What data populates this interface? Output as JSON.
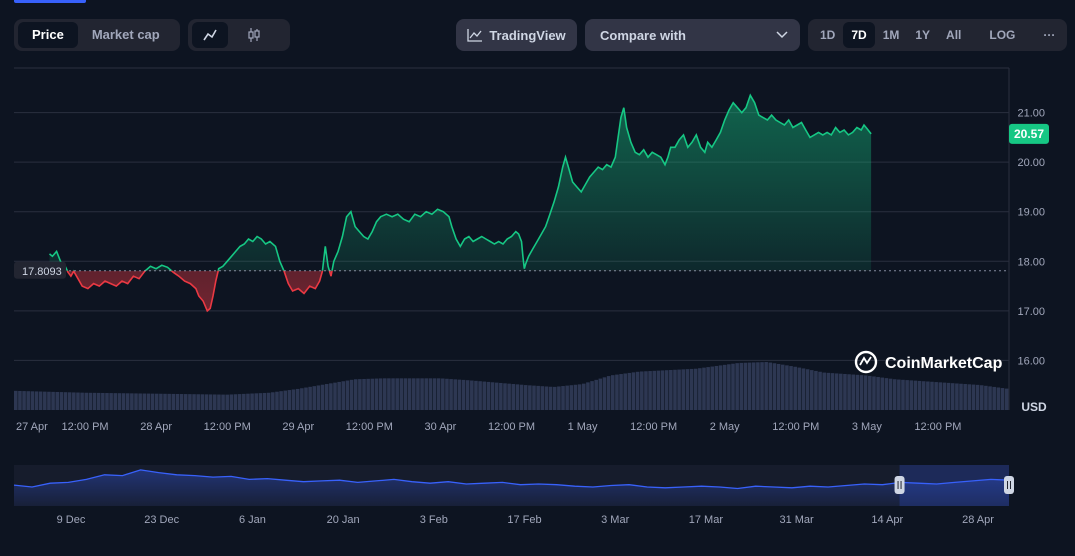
{
  "toolbar": {
    "price_label": "Price",
    "market_cap_label": "Market cap",
    "tradingview_label": "TradingView",
    "compare_label": "Compare with",
    "range_options": [
      "1D",
      "7D",
      "1M",
      "1Y",
      "All"
    ],
    "range_selected": "7D",
    "log_label": "LOG",
    "more_label": "···"
  },
  "chart_data": {
    "type": "area",
    "title": "",
    "baseline_value": 17.8093,
    "baseline_label": "17.8093",
    "current_value": 20.57,
    "current_label": "20.57",
    "ylim": [
      15.0,
      21.9
    ],
    "yticks": [
      16.0,
      17.0,
      18.0,
      19.0,
      20.0,
      21.0
    ],
    "ytick_labels": [
      "16.00",
      "17.00",
      "18.00",
      "19.00",
      "20.00",
      "21.00"
    ],
    "ylabel": "USD",
    "x_domain": [
      0,
      7
    ],
    "x_ticks": [
      {
        "t": 0.0,
        "label": "27 Apr"
      },
      {
        "t": 0.5,
        "label": "12:00 PM"
      },
      {
        "t": 1.0,
        "label": "28 Apr"
      },
      {
        "t": 1.5,
        "label": "12:00 PM"
      },
      {
        "t": 2.0,
        "label": "29 Apr"
      },
      {
        "t": 2.5,
        "label": "12:00 PM"
      },
      {
        "t": 3.0,
        "label": "30 Apr"
      },
      {
        "t": 3.5,
        "label": "12:00 PM"
      },
      {
        "t": 4.0,
        "label": "1 May"
      },
      {
        "t": 4.5,
        "label": "12:00 PM"
      },
      {
        "t": 5.0,
        "label": "2 May"
      },
      {
        "t": 5.5,
        "label": "12:00 PM"
      },
      {
        "t": 6.0,
        "label": "3 May"
      },
      {
        "t": 6.5,
        "label": "12:00 PM"
      }
    ],
    "price_series": [
      [
        0.25,
        18.15
      ],
      [
        0.27,
        18.1
      ],
      [
        0.3,
        18.2
      ],
      [
        0.33,
        17.98
      ],
      [
        0.36,
        17.9
      ],
      [
        0.38,
        17.78
      ],
      [
        0.4,
        17.7
      ],
      [
        0.42,
        17.8
      ],
      [
        0.45,
        17.65
      ],
      [
        0.48,
        17.5
      ],
      [
        0.52,
        17.45
      ],
      [
        0.56,
        17.55
      ],
      [
        0.6,
        17.5
      ],
      [
        0.64,
        17.6
      ],
      [
        0.68,
        17.55
      ],
      [
        0.72,
        17.5
      ],
      [
        0.76,
        17.6
      ],
      [
        0.8,
        17.55
      ],
      [
        0.84,
        17.7
      ],
      [
        0.88,
        17.65
      ],
      [
        0.92,
        17.8
      ],
      [
        0.96,
        17.9
      ],
      [
        1.0,
        17.85
      ],
      [
        1.04,
        17.92
      ],
      [
        1.08,
        17.88
      ],
      [
        1.12,
        17.78
      ],
      [
        1.16,
        17.7
      ],
      [
        1.2,
        17.6
      ],
      [
        1.24,
        17.55
      ],
      [
        1.28,
        17.45
      ],
      [
        1.3,
        17.3
      ],
      [
        1.33,
        17.2
      ],
      [
        1.36,
        17.0
      ],
      [
        1.38,
        17.05
      ],
      [
        1.4,
        17.3
      ],
      [
        1.42,
        17.6
      ],
      [
        1.44,
        17.85
      ],
      [
        1.47,
        17.9
      ],
      [
        1.5,
        18.0
      ],
      [
        1.53,
        18.1
      ],
      [
        1.56,
        18.2
      ],
      [
        1.59,
        18.3
      ],
      [
        1.62,
        18.35
      ],
      [
        1.65,
        18.45
      ],
      [
        1.68,
        18.4
      ],
      [
        1.71,
        18.5
      ],
      [
        1.74,
        18.45
      ],
      [
        1.77,
        18.35
      ],
      [
        1.8,
        18.4
      ],
      [
        1.84,
        18.3
      ],
      [
        1.87,
        18.0
      ],
      [
        1.9,
        17.8
      ],
      [
        1.93,
        17.55
      ],
      [
        1.96,
        17.4
      ],
      [
        2.0,
        17.45
      ],
      [
        2.04,
        17.35
      ],
      [
        2.08,
        17.5
      ],
      [
        2.12,
        17.45
      ],
      [
        2.15,
        17.6
      ],
      [
        2.17,
        17.8
      ],
      [
        2.19,
        18.3
      ],
      [
        2.21,
        17.9
      ],
      [
        2.23,
        17.7
      ],
      [
        2.25,
        18.0
      ],
      [
        2.28,
        18.2
      ],
      [
        2.31,
        18.5
      ],
      [
        2.34,
        18.9
      ],
      [
        2.37,
        19.0
      ],
      [
        2.4,
        18.7
      ],
      [
        2.43,
        18.6
      ],
      [
        2.46,
        18.5
      ],
      [
        2.49,
        18.45
      ],
      [
        2.52,
        18.6
      ],
      [
        2.55,
        18.8
      ],
      [
        2.58,
        18.9
      ],
      [
        2.62,
        18.95
      ],
      [
        2.66,
        18.9
      ],
      [
        2.7,
        18.95
      ],
      [
        2.74,
        18.85
      ],
      [
        2.78,
        18.8
      ],
      [
        2.82,
        18.95
      ],
      [
        2.86,
        18.9
      ],
      [
        2.9,
        19.0
      ],
      [
        2.94,
        18.95
      ],
      [
        2.98,
        19.05
      ],
      [
        3.02,
        19.0
      ],
      [
        3.06,
        18.9
      ],
      [
        3.08,
        18.7
      ],
      [
        3.11,
        18.45
      ],
      [
        3.14,
        18.3
      ],
      [
        3.17,
        18.45
      ],
      [
        3.2,
        18.5
      ],
      [
        3.23,
        18.4
      ],
      [
        3.26,
        18.45
      ],
      [
        3.29,
        18.5
      ],
      [
        3.32,
        18.45
      ],
      [
        3.35,
        18.4
      ],
      [
        3.38,
        18.35
      ],
      [
        3.41,
        18.4
      ],
      [
        3.44,
        18.35
      ],
      [
        3.47,
        18.45
      ],
      [
        3.5,
        18.5
      ],
      [
        3.53,
        18.6
      ],
      [
        3.55,
        18.55
      ],
      [
        3.57,
        18.4
      ],
      [
        3.58,
        18.1
      ],
      [
        3.59,
        17.85
      ],
      [
        3.6,
        17.95
      ],
      [
        3.62,
        18.1
      ],
      [
        3.65,
        18.25
      ],
      [
        3.68,
        18.4
      ],
      [
        3.71,
        18.55
      ],
      [
        3.74,
        18.7
      ],
      [
        3.77,
        18.95
      ],
      [
        3.8,
        19.2
      ],
      [
        3.83,
        19.5
      ],
      [
        3.86,
        19.9
      ],
      [
        3.88,
        20.1
      ],
      [
        3.9,
        19.9
      ],
      [
        3.93,
        19.6
      ],
      [
        3.96,
        19.5
      ],
      [
        3.99,
        19.4
      ],
      [
        4.02,
        19.55
      ],
      [
        4.05,
        19.7
      ],
      [
        4.08,
        19.8
      ],
      [
        4.11,
        19.9
      ],
      [
        4.14,
        19.85
      ],
      [
        4.17,
        19.95
      ],
      [
        4.2,
        19.9
      ],
      [
        4.23,
        20.1
      ],
      [
        4.25,
        20.5
      ],
      [
        4.27,
        20.9
      ],
      [
        4.29,
        21.1
      ],
      [
        4.31,
        20.7
      ],
      [
        4.34,
        20.4
      ],
      [
        4.37,
        20.2
      ],
      [
        4.4,
        20.15
      ],
      [
        4.43,
        20.25
      ],
      [
        4.46,
        20.1
      ],
      [
        4.49,
        20.2
      ],
      [
        4.52,
        20.15
      ],
      [
        4.55,
        20.1
      ],
      [
        4.58,
        19.95
      ],
      [
        4.6,
        20.1
      ],
      [
        4.62,
        20.3
      ],
      [
        4.65,
        20.3
      ],
      [
        4.68,
        20.45
      ],
      [
        4.71,
        20.55
      ],
      [
        4.74,
        20.3
      ],
      [
        4.77,
        20.4
      ],
      [
        4.8,
        20.55
      ],
      [
        4.83,
        20.3
      ],
      [
        4.86,
        20.2
      ],
      [
        4.88,
        20.4
      ],
      [
        4.91,
        20.3
      ],
      [
        4.94,
        20.45
      ],
      [
        4.97,
        20.6
      ],
      [
        5.0,
        20.85
      ],
      [
        5.03,
        21.05
      ],
      [
        5.06,
        21.2
      ],
      [
        5.09,
        21.1
      ],
      [
        5.12,
        21.0
      ],
      [
        5.15,
        21.1
      ],
      [
        5.18,
        21.35
      ],
      [
        5.21,
        21.2
      ],
      [
        5.24,
        20.95
      ],
      [
        5.27,
        20.9
      ],
      [
        5.3,
        20.85
      ],
      [
        5.33,
        20.95
      ],
      [
        5.36,
        20.85
      ],
      [
        5.39,
        20.8
      ],
      [
        5.42,
        20.75
      ],
      [
        5.45,
        20.85
      ],
      [
        5.48,
        20.7
      ],
      [
        5.51,
        20.75
      ],
      [
        5.54,
        20.8
      ],
      [
        5.57,
        20.65
      ],
      [
        5.6,
        20.5
      ],
      [
        5.63,
        20.55
      ],
      [
        5.66,
        20.6
      ],
      [
        5.69,
        20.55
      ],
      [
        5.72,
        20.6
      ],
      [
        5.75,
        20.55
      ],
      [
        5.78,
        20.7
      ],
      [
        5.81,
        20.6
      ],
      [
        5.84,
        20.65
      ],
      [
        5.87,
        20.55
      ],
      [
        5.9,
        20.6
      ],
      [
        5.93,
        20.7
      ],
      [
        5.96,
        20.65
      ],
      [
        5.98,
        20.75
      ],
      [
        6.0,
        20.68
      ],
      [
        6.03,
        20.57
      ]
    ],
    "volume_series": [
      [
        0.0,
        0.4
      ],
      [
        0.5,
        0.36
      ],
      [
        1.0,
        0.34
      ],
      [
        1.5,
        0.32
      ],
      [
        1.8,
        0.36
      ],
      [
        2.0,
        0.44
      ],
      [
        2.2,
        0.54
      ],
      [
        2.4,
        0.64
      ],
      [
        2.6,
        0.66
      ],
      [
        3.0,
        0.66
      ],
      [
        3.2,
        0.62
      ],
      [
        3.6,
        0.52
      ],
      [
        3.8,
        0.48
      ],
      [
        4.0,
        0.54
      ],
      [
        4.2,
        0.72
      ],
      [
        4.4,
        0.8
      ],
      [
        4.8,
        0.86
      ],
      [
        5.1,
        0.98
      ],
      [
        5.3,
        1.0
      ],
      [
        5.5,
        0.9
      ],
      [
        5.7,
        0.78
      ],
      [
        6.0,
        0.72
      ],
      [
        6.2,
        0.64
      ],
      [
        6.5,
        0.58
      ],
      [
        6.8,
        0.52
      ],
      [
        7.0,
        0.44
      ]
    ],
    "overview": {
      "x_labels": [
        "9 Dec",
        "23 Dec",
        "6 Jan",
        "20 Jan",
        "3 Feb",
        "17 Feb",
        "3 Mar",
        "17 Mar",
        "31 Mar",
        "14 Apr",
        "28 Apr"
      ],
      "series": [
        0.55,
        0.5,
        0.6,
        0.62,
        0.7,
        0.82,
        0.8,
        0.95,
        0.88,
        0.82,
        0.8,
        0.76,
        0.78,
        0.7,
        0.72,
        0.68,
        0.64,
        0.66,
        0.68,
        0.62,
        0.66,
        0.7,
        0.64,
        0.6,
        0.64,
        0.58,
        0.6,
        0.62,
        0.56,
        0.58,
        0.56,
        0.52,
        0.5,
        0.54,
        0.56,
        0.5,
        0.48,
        0.5,
        0.52,
        0.5,
        0.46,
        0.52,
        0.5,
        0.48,
        0.52,
        0.5,
        0.54,
        0.58,
        0.56,
        0.62,
        0.6,
        0.58,
        0.62,
        0.66,
        0.7,
        0.68
      ],
      "brush_start": 0.89
    },
    "watermark": "CoinMarketCap"
  },
  "colors": {
    "up": "#16c784",
    "down": "#ea3943",
    "volume": "#2d3752",
    "overview_line": "#3861fb",
    "grid": "#2a2f3f",
    "axis_text": "#a1a7bb",
    "accent": "#3861fb"
  }
}
